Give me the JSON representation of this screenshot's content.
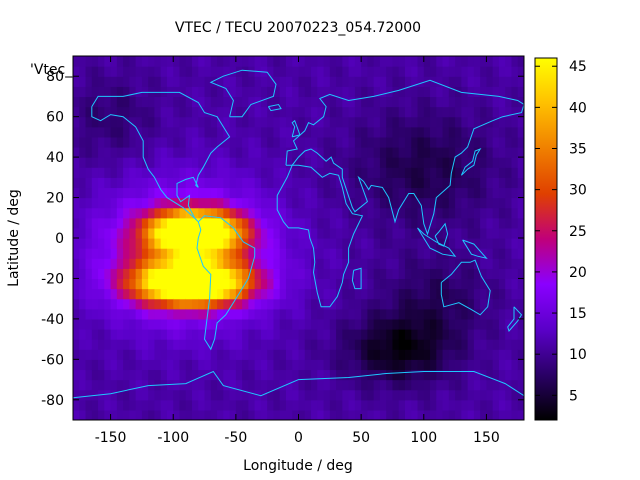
{
  "chart_data": {
    "type": "heatmap",
    "title": "VTEC / TECU 20070223_054.72000",
    "xlabel": "Longitude / deg",
    "ylabel": "Latitude / deg",
    "legend_label": "'Vtec_",
    "xlim": [
      -180,
      180
    ],
    "ylim": [
      -90,
      90
    ],
    "x_ticks": [
      -150,
      -100,
      -50,
      0,
      50,
      100,
      150
    ],
    "y_ticks": [
      -80,
      -60,
      -40,
      -20,
      0,
      20,
      40,
      60,
      80
    ],
    "colorbar": {
      "range": [
        2,
        46
      ],
      "ticks": [
        5,
        10,
        15,
        20,
        25,
        30,
        35,
        40,
        45
      ],
      "palette": [
        "#000000",
        "#2a0066",
        "#5a00c8",
        "#8a00ff",
        "#c0007a",
        "#e04000",
        "#f08000",
        "#ffc000",
        "#ffff00"
      ]
    },
    "grid_deg": 5,
    "background_tec": 11,
    "features": [
      {
        "name": "equatorial-anomaly-north",
        "lon": -82,
        "lat": 3,
        "tec": 44,
        "sigma_lon": 24,
        "sigma_lat": 7
      },
      {
        "name": "equatorial-anomaly-south",
        "lon": -85,
        "lat": -22,
        "tec": 44,
        "sigma_lon": 30,
        "sigma_lat": 7
      },
      {
        "name": "daytime-envelope",
        "lon": -90,
        "lat": -8,
        "tec": 17,
        "sigma_lon": 45,
        "sigma_lat": 22
      },
      {
        "name": "north-pacific-low",
        "lon": -150,
        "lat": 60,
        "tec": -3,
        "sigma_lon": 25,
        "sigma_lat": 15
      },
      {
        "name": "asia-low",
        "lon": 100,
        "lat": 35,
        "tec": -5,
        "sigma_lon": 40,
        "sigma_lat": 20
      },
      {
        "name": "southern-ocean-low",
        "lon": 80,
        "lat": -55,
        "tec": -8,
        "sigma_lon": 30,
        "sigma_lat": 12
      },
      {
        "name": "indian-ocean-low",
        "lon": 110,
        "lat": -30,
        "tec": -4,
        "sigma_lon": 30,
        "sigma_lat": 15
      }
    ],
    "coastlines": [
      {
        "name": "north-america",
        "points": [
          [
            -165,
            65
          ],
          [
            -160,
            70
          ],
          [
            -140,
            70
          ],
          [
            -125,
            72
          ],
          [
            -95,
            72
          ],
          [
            -80,
            67
          ],
          [
            -75,
            62
          ],
          [
            -65,
            60
          ],
          [
            -55,
            50
          ],
          [
            -65,
            45
          ],
          [
            -70,
            42
          ],
          [
            -76,
            35
          ],
          [
            -80,
            31
          ],
          [
            -82,
            26
          ],
          [
            -80,
            25
          ],
          [
            -84,
            30
          ],
          [
            -90,
            29
          ],
          [
            -97,
            27
          ],
          [
            -97,
            21
          ],
          [
            -94,
            18
          ],
          [
            -87,
            21
          ],
          [
            -88,
            16
          ],
          [
            -83,
            10
          ],
          [
            -80,
            8
          ],
          [
            -85,
            11
          ],
          [
            -92,
            15
          ],
          [
            -105,
            20
          ],
          [
            -110,
            24
          ],
          [
            -115,
            30
          ],
          [
            -120,
            34
          ],
          [
            -124,
            40
          ],
          [
            -124,
            48
          ],
          [
            -130,
            55
          ],
          [
            -140,
            60
          ],
          [
            -150,
            61
          ],
          [
            -158,
            58
          ],
          [
            -165,
            60
          ],
          [
            -165,
            65
          ]
        ]
      },
      {
        "name": "south-america",
        "points": [
          [
            -80,
            8
          ],
          [
            -75,
            11
          ],
          [
            -62,
            10
          ],
          [
            -52,
            5
          ],
          [
            -44,
            -2
          ],
          [
            -35,
            -5
          ],
          [
            -35,
            -9
          ],
          [
            -40,
            -20
          ],
          [
            -48,
            -28
          ],
          [
            -58,
            -38
          ],
          [
            -65,
            -42
          ],
          [
            -67,
            -50
          ],
          [
            -70,
            -55
          ],
          [
            -75,
            -50
          ],
          [
            -73,
            -40
          ],
          [
            -71,
            -30
          ],
          [
            -70,
            -18
          ],
          [
            -76,
            -14
          ],
          [
            -81,
            -5
          ],
          [
            -80,
            0
          ],
          [
            -78,
            4
          ],
          [
            -80,
            8
          ]
        ]
      },
      {
        "name": "greenland",
        "points": [
          [
            -55,
            60
          ],
          [
            -45,
            60
          ],
          [
            -38,
            66
          ],
          [
            -20,
            70
          ],
          [
            -18,
            76
          ],
          [
            -25,
            82
          ],
          [
            -45,
            83
          ],
          [
            -60,
            80
          ],
          [
            -70,
            77
          ],
          [
            -58,
            74
          ],
          [
            -52,
            68
          ],
          [
            -55,
            60
          ]
        ]
      },
      {
        "name": "eurasia",
        "points": [
          [
            -10,
            36
          ],
          [
            -9,
            43
          ],
          [
            -1,
            44
          ],
          [
            -4,
            48
          ],
          [
            5,
            53
          ],
          [
            8,
            57
          ],
          [
            12,
            56
          ],
          [
            20,
            60
          ],
          [
            22,
            65
          ],
          [
            17,
            69
          ],
          [
            25,
            71
          ],
          [
            40,
            68
          ],
          [
            60,
            70
          ],
          [
            80,
            73
          ],
          [
            105,
            78
          ],
          [
            130,
            72
          ],
          [
            160,
            70
          ],
          [
            175,
            68
          ],
          [
            180,
            66
          ],
          [
            178,
            62
          ],
          [
            163,
            60
          ],
          [
            155,
            58
          ],
          [
            140,
            54
          ],
          [
            135,
            45
          ],
          [
            130,
            42
          ],
          [
            125,
            40
          ],
          [
            122,
            32
          ],
          [
            121,
            26
          ],
          [
            110,
            20
          ],
          [
            108,
            12
          ],
          [
            103,
            2
          ],
          [
            100,
            7
          ],
          [
            98,
            16
          ],
          [
            92,
            22
          ],
          [
            88,
            22
          ],
          [
            80,
            14
          ],
          [
            77,
            8
          ],
          [
            72,
            20
          ],
          [
            67,
            25
          ],
          [
            58,
            26
          ],
          [
            56,
            24
          ],
          [
            52,
            28
          ],
          [
            48,
            30
          ],
          [
            55,
            18
          ],
          [
            45,
            13
          ],
          [
            43,
            15
          ],
          [
            35,
            30
          ],
          [
            35,
            34
          ],
          [
            28,
            37
          ],
          [
            26,
            40
          ],
          [
            22,
            38
          ],
          [
            15,
            42
          ],
          [
            10,
            44
          ],
          [
            5,
            43
          ],
          [
            0,
            40
          ],
          [
            -5,
            36
          ],
          [
            -10,
            36
          ]
        ]
      },
      {
        "name": "africa",
        "points": [
          [
            -17,
            21
          ],
          [
            -17,
            14
          ],
          [
            -12,
            8
          ],
          [
            -8,
            5
          ],
          [
            0,
            5
          ],
          [
            8,
            4
          ],
          [
            9,
            0
          ],
          [
            12,
            -5
          ],
          [
            13,
            -12
          ],
          [
            12,
            -17
          ],
          [
            15,
            -27
          ],
          [
            18,
            -34
          ],
          [
            25,
            -34
          ],
          [
            31,
            -29
          ],
          [
            35,
            -22
          ],
          [
            36,
            -18
          ],
          [
            40,
            -12
          ],
          [
            40,
            -5
          ],
          [
            44,
            2
          ],
          [
            51,
            11
          ],
          [
            43,
            12
          ],
          [
            38,
            17
          ],
          [
            35,
            25
          ],
          [
            32,
            31
          ],
          [
            25,
            32
          ],
          [
            19,
            30
          ],
          [
            10,
            35
          ],
          [
            0,
            36
          ],
          [
            -5,
            36
          ],
          [
            -9,
            30
          ],
          [
            -17,
            21
          ]
        ]
      },
      {
        "name": "australia",
        "points": [
          [
            114,
            -22
          ],
          [
            122,
            -18
          ],
          [
            130,
            -12
          ],
          [
            137,
            -12
          ],
          [
            141,
            -11
          ],
          [
            146,
            -19
          ],
          [
            153,
            -26
          ],
          [
            151,
            -34
          ],
          [
            145,
            -38
          ],
          [
            137,
            -35
          ],
          [
            128,
            -32
          ],
          [
            116,
            -34
          ],
          [
            114,
            -28
          ],
          [
            114,
            -22
          ]
        ]
      },
      {
        "name": "antarctica",
        "points": [
          [
            -180,
            -79
          ],
          [
            -150,
            -77
          ],
          [
            -120,
            -73
          ],
          [
            -90,
            -72
          ],
          [
            -68,
            -66
          ],
          [
            -60,
            -73
          ],
          [
            -30,
            -78
          ],
          [
            0,
            -70
          ],
          [
            40,
            -69
          ],
          [
            70,
            -67
          ],
          [
            100,
            -66
          ],
          [
            140,
            -66
          ],
          [
            165,
            -72
          ],
          [
            180,
            -78
          ]
        ]
      },
      {
        "name": "madagascar",
        "points": [
          [
            44,
            -16
          ],
          [
            50,
            -15
          ],
          [
            50,
            -25
          ],
          [
            45,
            -25
          ],
          [
            43,
            -21
          ],
          [
            44,
            -16
          ]
        ]
      },
      {
        "name": "japan",
        "points": [
          [
            130,
            31
          ],
          [
            135,
            34
          ],
          [
            140,
            36
          ],
          [
            142,
            41
          ],
          [
            145,
            44
          ],
          [
            141,
            43
          ],
          [
            139,
            38
          ],
          [
            133,
            35
          ],
          [
            130,
            31
          ]
        ]
      },
      {
        "name": "uk",
        "points": [
          [
            -5,
            50
          ],
          [
            1,
            51
          ],
          [
            0,
            53
          ],
          [
            -3,
            58
          ],
          [
            -5,
            57
          ],
          [
            -3,
            55
          ],
          [
            -5,
            50
          ]
        ]
      },
      {
        "name": "new-zealand",
        "points": [
          [
            172,
            -34
          ],
          [
            178,
            -38
          ],
          [
            175,
            -41
          ],
          [
            168,
            -46
          ],
          [
            167,
            -44
          ],
          [
            172,
            -40
          ],
          [
            172,
            -34
          ]
        ]
      },
      {
        "name": "indonesia",
        "points": [
          [
            95,
            5
          ],
          [
            105,
            -5
          ],
          [
            115,
            -8
          ],
          [
            125,
            -9
          ],
          [
            120,
            -5
          ],
          [
            110,
            -2
          ],
          [
            100,
            2
          ],
          [
            95,
            5
          ]
        ]
      },
      {
        "name": "borneo",
        "points": [
          [
            109,
            1
          ],
          [
            112,
            -3
          ],
          [
            116,
            -4
          ],
          [
            119,
            2
          ],
          [
            117,
            7
          ],
          [
            112,
            3
          ],
          [
            109,
            1
          ]
        ]
      },
      {
        "name": "new-guinea",
        "points": [
          [
            131,
            -1
          ],
          [
            140,
            -3
          ],
          [
            150,
            -10
          ],
          [
            143,
            -9
          ],
          [
            138,
            -8
          ],
          [
            131,
            -1
          ]
        ]
      },
      {
        "name": "iceland",
        "points": [
          [
            -24,
            65
          ],
          [
            -16,
            66
          ],
          [
            -14,
            64
          ],
          [
            -22,
            63
          ],
          [
            -24,
            65
          ]
        ]
      }
    ]
  }
}
